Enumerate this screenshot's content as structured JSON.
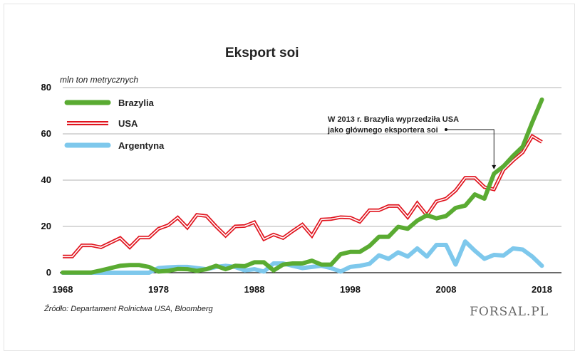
{
  "chart_data": {
    "type": "line",
    "title": "Eksport soi",
    "ylabel": "mln ton metrycznych",
    "xlabel": "",
    "ylim": [
      0,
      80
    ],
    "xlim": [
      1968,
      2019
    ],
    "yticks": [
      0,
      20,
      40,
      60,
      80
    ],
    "xticks": [
      1968,
      1978,
      1988,
      1998,
      2008,
      2018
    ],
    "grid": true,
    "legend_position": "top-left",
    "x": [
      1968,
      1969,
      1970,
      1971,
      1972,
      1973,
      1974,
      1975,
      1976,
      1977,
      1978,
      1979,
      1980,
      1981,
      1982,
      1983,
      1984,
      1985,
      1986,
      1987,
      1988,
      1989,
      1990,
      1991,
      1992,
      1993,
      1994,
      1995,
      1996,
      1997,
      1998,
      1999,
      2000,
      2001,
      2002,
      2003,
      2004,
      2005,
      2006,
      2007,
      2008,
      2009,
      2010,
      2011,
      2012,
      2013,
      2014,
      2015,
      2016,
      2017,
      2018
    ],
    "series": [
      {
        "name": "Brazylia",
        "color": "#5aab32",
        "style": "thick",
        "values": [
          0.1,
          0.1,
          0.1,
          0.1,
          1.0,
          2.0,
          3.0,
          3.3,
          3.3,
          2.5,
          0.5,
          0.8,
          1.6,
          1.5,
          0.8,
          1.5,
          3.0,
          1.5,
          3.0,
          2.8,
          4.5,
          4.5,
          1.0,
          3.5,
          4.0,
          4.0,
          5.2,
          3.5,
          3.5,
          8.0,
          9.0,
          9.0,
          11.5,
          15.5,
          15.5,
          19.8,
          19.0,
          22.5,
          24.8,
          23.5,
          24.5,
          28.0,
          29.0,
          33.8,
          32.0,
          42.8,
          46.0,
          50.5,
          54.5,
          65.0,
          74.8
        ]
      },
      {
        "name": "USA",
        "color": "#e0141e",
        "style": "double",
        "values": [
          7.0,
          7.0,
          11.8,
          11.8,
          11.0,
          13.0,
          15.0,
          11.0,
          15.2,
          15.2,
          19.0,
          20.5,
          23.8,
          19.5,
          25.0,
          24.5,
          20.0,
          16.0,
          20.0,
          20.2,
          21.8,
          14.5,
          16.5,
          15.0,
          18.0,
          20.8,
          16.0,
          23.0,
          23.2,
          24.0,
          23.8,
          22.0,
          27.0,
          27.0,
          28.8,
          28.8,
          24.0,
          30.0,
          24.8,
          30.8,
          32.0,
          35.5,
          41.0,
          41.0,
          37.0,
          36.0,
          44.5,
          48.5,
          52.0,
          59.0,
          56.5
        ]
      },
      {
        "name": "Argentyna",
        "color": "#7ec8ec",
        "style": "thick",
        "values": [
          0.0,
          0.0,
          0.0,
          0.0,
          0.0,
          0.0,
          0.0,
          0.0,
          0.0,
          0.0,
          2.0,
          2.3,
          2.5,
          2.5,
          2.0,
          1.5,
          2.5,
          3.0,
          2.5,
          1.0,
          1.5,
          0.5,
          4.0,
          4.0,
          3.0,
          2.0,
          2.5,
          3.0,
          2.0,
          0.5,
          2.5,
          3.0,
          3.8,
          7.5,
          6.0,
          8.8,
          7.0,
          10.5,
          7.0,
          12.0,
          12.0,
          3.5,
          13.5,
          9.5,
          6.0,
          7.7,
          7.4,
          10.5,
          10.0,
          7.0,
          3.0
        ]
      }
    ],
    "annotation": {
      "text_line1": "W 2013 r. Brazylia wyprzedziła USA",
      "text_line2": "jako głównego eksportera soi",
      "x": 2013,
      "y": 42.8
    }
  },
  "source": "Źródło: Departament Rolnictwa USA, Bloomberg",
  "logo": "FORSAL.PL"
}
